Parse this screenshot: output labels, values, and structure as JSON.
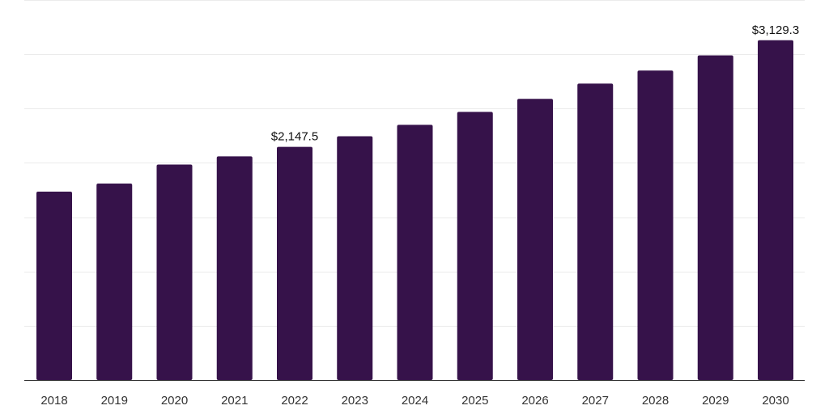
{
  "chart_data": {
    "type": "bar",
    "categories": [
      "2018",
      "2019",
      "2020",
      "2021",
      "2022",
      "2023",
      "2024",
      "2025",
      "2026",
      "2027",
      "2028",
      "2029",
      "2030"
    ],
    "series": [
      {
        "values": [
          1735,
          1810,
          1985,
          2060,
          2147.5,
          2245,
          2350,
          2470,
          2590,
          2730,
          2850,
          2990,
          3129.3
        ],
        "color": "#36124a"
      }
    ],
    "data_labels": [
      {
        "category": "2022",
        "text": "$2,147.5"
      },
      {
        "category": "2030",
        "text": "$3,129.3"
      }
    ],
    "ylim": [
      0,
      3500
    ],
    "y_gridlines": [
      0,
      500,
      1000,
      1500,
      2000,
      2500,
      3000,
      3500
    ],
    "y_tick_labels_shown": false,
    "grid": true,
    "title": "",
    "xlabel": "",
    "ylabel": ""
  }
}
